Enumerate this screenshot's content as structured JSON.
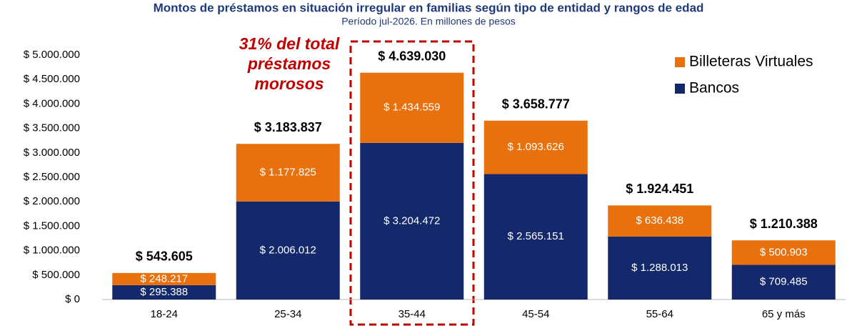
{
  "chart_data": {
    "type": "stacked-bar",
    "title": "Montos de préstamos en situación irregular en familias según tipo de entidad y rangos de edad",
    "subtitle": "Período jul-2026. En millones de pesos",
    "categories": [
      "18-24",
      "25-34",
      "35-44",
      "45-54",
      "55-64",
      "65 y más"
    ],
    "series": [
      {
        "name": "Bancos",
        "color": "#13296b",
        "values": [
          295388,
          2006012,
          3204472,
          2565151,
          1288013,
          709485
        ],
        "value_labels": [
          "$ 295.388",
          "$ 2.006.012",
          "$ 3.204.472",
          "$ 2.565.151",
          "$ 1.288.013",
          "$ 709.485"
        ]
      },
      {
        "name": "Billeteras Virtuales",
        "color": "#e8710e",
        "values": [
          248217,
          1177825,
          1434559,
          1093626,
          636438,
          500903
        ],
        "value_labels": [
          "$ 248.217",
          "$ 1.177.825",
          "$ 1.434.559",
          "$ 1.093.626",
          "$ 636.438",
          "$ 500.903"
        ]
      }
    ],
    "totals": {
      "values": [
        543605,
        3183837,
        4639030,
        3658777,
        1924451,
        1210388
      ],
      "value_labels": [
        "$ 543.605",
        "$ 3.183.837",
        "$ 4.639.030",
        "$ 3.658.777",
        "$ 1.924.451",
        "$ 1.210.388"
      ]
    },
    "annotation": [
      "31% del total",
      "préstamos",
      "morosos"
    ],
    "ylim": [
      0,
      5000000
    ],
    "yticks": [
      {
        "value": 0,
        "label": "$ 0"
      },
      {
        "value": 500000,
        "label": "$ 500.000"
      },
      {
        "value": 1000000,
        "label": "$ 1.000.000"
      },
      {
        "value": 1500000,
        "label": "$ 1.500.000"
      },
      {
        "value": 2000000,
        "label": "$ 2.000.000"
      },
      {
        "value": 2500000,
        "label": "$ 2.500.000"
      },
      {
        "value": 3000000,
        "label": "$ 3.000.000"
      },
      {
        "value": 3500000,
        "label": "$ 3.500.000"
      },
      {
        "value": 4000000,
        "label": "$ 4.000.000"
      },
      {
        "value": 4500000,
        "label": "$ 4.500.000"
      },
      {
        "value": 5000000,
        "label": "$ 5.000.000"
      }
    ],
    "grid": false,
    "legend": "top-right"
  }
}
